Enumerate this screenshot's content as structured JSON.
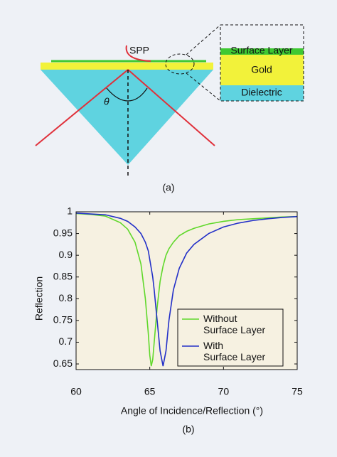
{
  "diagram": {
    "spp": "SPP",
    "theta": "θ",
    "surface_layer": "Surface Layer",
    "gold": "Gold",
    "dielectric": "Dielectric"
  },
  "panels": [
    "(a)",
    "(b)"
  ],
  "chart_data": {
    "type": "line",
    "x_label": "Angle of Incidence/Reflection (°)",
    "y_label": "Reflection",
    "x": [
      60,
      61,
      62,
      63,
      63.5,
      64,
      64.4,
      64.7,
      64.9,
      65.0,
      65.1,
      65.2,
      65.3,
      65.5,
      65.7,
      65.9,
      66.1,
      66.3,
      66.6,
      67,
      67.5,
      68,
      69,
      70,
      71,
      72,
      73,
      74,
      75
    ],
    "series": [
      {
        "name": "Without\nSurface Layer",
        "color": "#5fd82a",
        "values": [
          0.996,
          0.994,
          0.99,
          0.975,
          0.96,
          0.93,
          0.88,
          0.8,
          0.72,
          0.67,
          0.645,
          0.66,
          0.7,
          0.78,
          0.84,
          0.875,
          0.9,
          0.915,
          0.93,
          0.945,
          0.955,
          0.962,
          0.972,
          0.978,
          0.982,
          0.984,
          0.986,
          0.988,
          0.989
        ]
      },
      {
        "name": "With\nSurface Layer",
        "color": "#2330c8",
        "values": [
          0.997,
          0.995,
          0.993,
          0.985,
          0.978,
          0.965,
          0.95,
          0.93,
          0.91,
          0.89,
          0.87,
          0.85,
          0.82,
          0.75,
          0.68,
          0.645,
          0.68,
          0.75,
          0.82,
          0.87,
          0.905,
          0.925,
          0.95,
          0.965,
          0.974,
          0.98,
          0.984,
          0.987,
          0.989
        ]
      }
    ],
    "xlim": [
      60,
      75
    ],
    "xticks": [
      60,
      65,
      70,
      75
    ],
    "ylim": [
      0.637,
      1.0
    ],
    "yticks": [
      0.65,
      0.7,
      0.75,
      0.8,
      0.85,
      0.9,
      0.95,
      1
    ],
    "legend": "lower right",
    "background": "#f6f1e1"
  }
}
